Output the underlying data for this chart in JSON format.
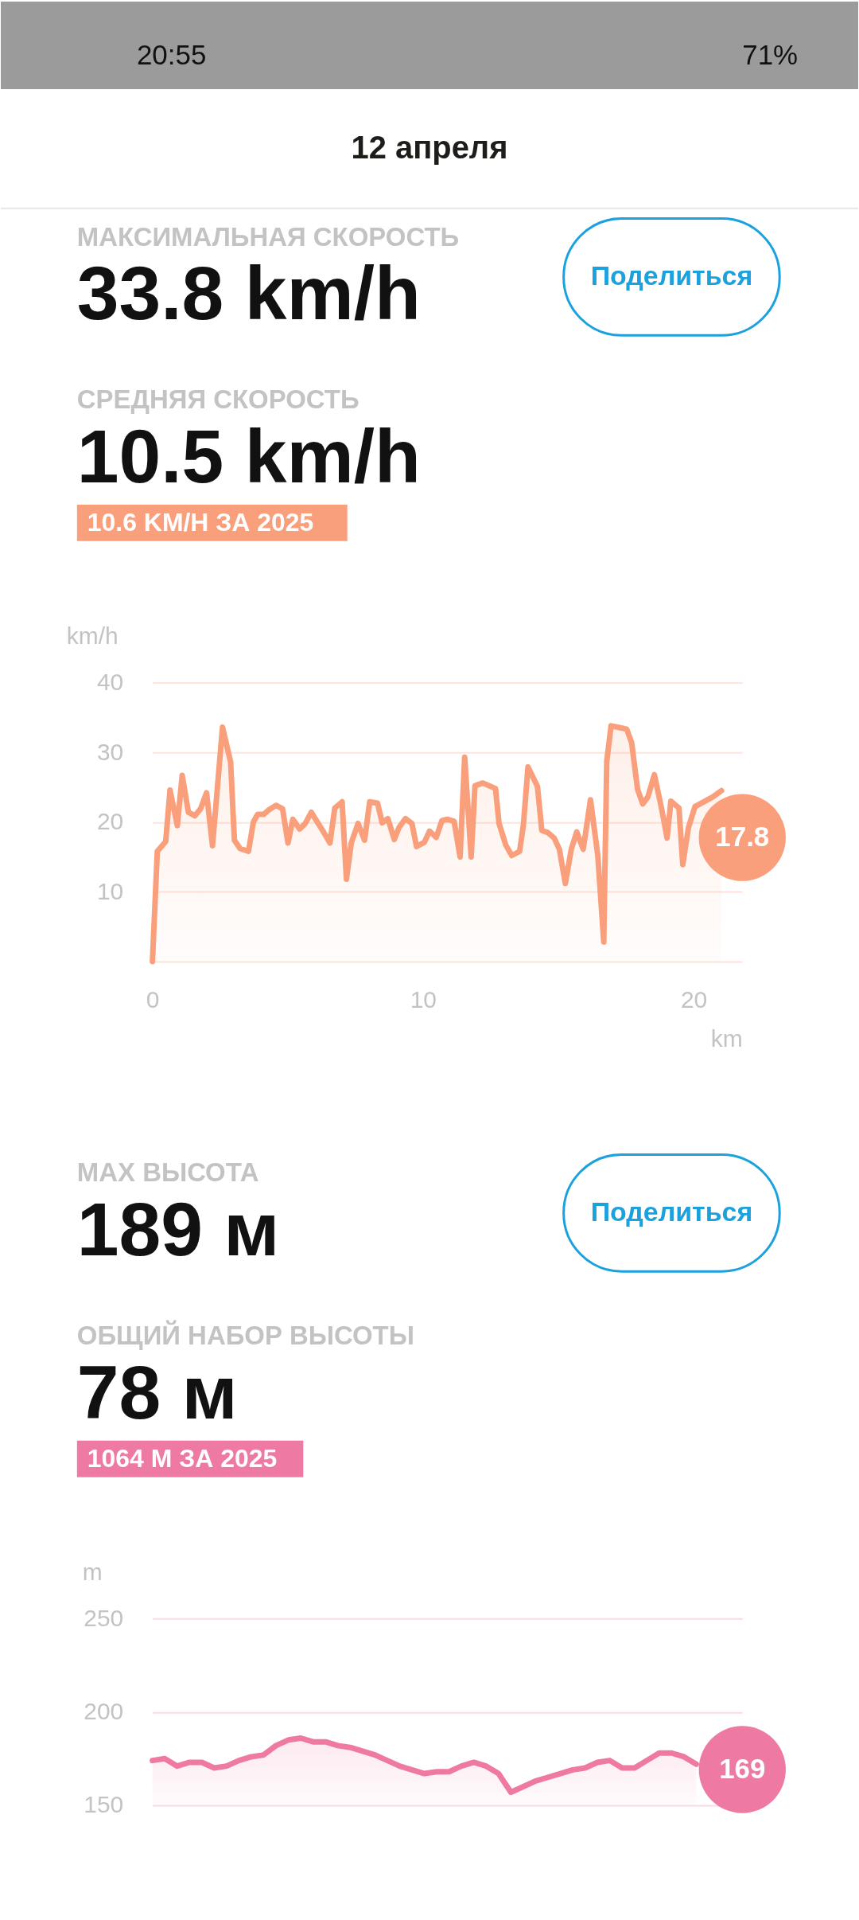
{
  "chart_data": [
    {
      "type": "area",
      "title": "12 апреля",
      "xlabel": "km",
      "ylabel": "km/h",
      "annotations": [
        "20:55",
        "71%",
        "МАКСИМАЛЬНАЯ СКОРОСТЬ",
        "33.8 km/h",
        "Поделиться",
        "СРЕДНЯЯ СКОРОСТЬ",
        "10.5 km/h",
        "10.6 KM/H ЗА 2025",
        "17.8"
      ],
      "x": [
        0,
        0.18,
        0.49,
        0.65,
        0.92,
        1.1,
        1.33,
        1.57,
        1.78,
        2.0,
        2.22,
        2.59,
        2.89,
        3.03,
        3.24,
        3.55,
        3.73,
        3.89,
        4.11,
        4.32,
        4.57,
        4.81,
        5.01,
        5.19,
        5.44,
        5.65,
        5.87,
        6.11,
        6.32,
        6.56,
        6.74,
        7.01,
        7.17,
        7.35,
        7.6,
        7.84,
        8.03,
        8.32,
        8.49,
        8.7,
        8.94,
        9.11,
        9.35,
        9.59,
        9.76,
        10.05,
        10.24,
        10.49,
        10.7,
        10.9,
        11.15,
        11.37,
        11.54,
        11.78,
        11.92,
        12.21,
        12.68,
        12.81,
        13.06,
        13.28,
        13.57,
        13.71,
        13.88,
        14.23,
        14.39,
        14.61,
        14.85,
        15.04,
        15.26,
        15.48,
        15.68,
        15.92,
        16.19,
        16.46,
        16.68,
        16.79,
        16.95,
        17.33,
        17.53,
        17.71,
        17.93,
        18.12,
        18.31,
        18.55,
        18.83,
        19.02,
        19.16,
        19.46,
        19.6,
        19.81,
        20.05,
        20.71,
        21.03
      ],
      "values": [
        0,
        15.8,
        17.2,
        24.6,
        19.5,
        26.7,
        21.4,
        20.9,
        21.9,
        24.2,
        16.6,
        33.6,
        28.6,
        17.4,
        16.2,
        15.8,
        20.0,
        21.1,
        21.1,
        21.8,
        22.4,
        21.9,
        17.0,
        20.4,
        19.0,
        19.8,
        21.4,
        19.9,
        18.6,
        17.0,
        22.0,
        22.9,
        11.8,
        17.0,
        19.8,
        17.4,
        22.9,
        22.7,
        19.9,
        20.5,
        17.5,
        19.2,
        20.5,
        19.8,
        16.5,
        17.1,
        18.7,
        17.8,
        20.2,
        20.4,
        20.1,
        15.0,
        29.3,
        15.0,
        25.2,
        25.6,
        24.8,
        19.8,
        16.7,
        15.2,
        15.8,
        19.6,
        27.9,
        25.1,
        18.8,
        18.5,
        17.7,
        16.1,
        11.2,
        16.1,
        18.6,
        16.1,
        23.2,
        15.2,
        2.8,
        28.7,
        33.8,
        33.5,
        33.3,
        31.4,
        24.7,
        22.6,
        23.6,
        26.8,
        21.7,
        17.7,
        23.0,
        22.0,
        13.9,
        19.2,
        22.2,
        23.6,
        24.5
      ],
      "color": "#fa9f7b",
      "xlim": [
        0,
        21.8
      ],
      "xticks": [
        0,
        10,
        20
      ],
      "ylim": [
        0,
        40
      ],
      "yticks": [
        10,
        20,
        30,
        40
      ],
      "grid": "y"
    },
    {
      "type": "area",
      "ylabel": "m",
      "annotations": [
        "MAX ВЫСОТА",
        "189 м",
        "Поделиться",
        "ОБЩИЙ НАБОР ВЫСОТЫ",
        "78 м",
        "1064 М ЗА 2025",
        "169"
      ],
      "categories": [
        null,
        null,
        null,
        null,
        null,
        null,
        null,
        null,
        null,
        null,
        null,
        null,
        null,
        null,
        null,
        null,
        null,
        null,
        null,
        null,
        null,
        null,
        null,
        null,
        null,
        null,
        null,
        null,
        null,
        null,
        null,
        null,
        null,
        null,
        null,
        null,
        null,
        null,
        null,
        null,
        null,
        null,
        null,
        null,
        null
      ],
      "values": [
        174,
        175,
        171,
        173,
        173,
        170,
        171,
        174,
        176,
        177,
        182,
        185,
        186,
        184,
        184,
        182,
        181,
        179,
        177,
        174,
        171,
        169,
        167,
        168,
        168,
        171,
        173,
        171,
        167,
        157,
        160,
        163,
        165,
        167,
        169,
        170,
        173,
        174,
        170,
        170,
        174,
        178,
        178,
        176,
        172
      ],
      "color": "#ee7aa3",
      "ylim": [
        150,
        250
      ],
      "yticks": [
        150,
        200,
        250
      ],
      "grid": "y",
      "tick_labels": "y"
    }
  ]
}
